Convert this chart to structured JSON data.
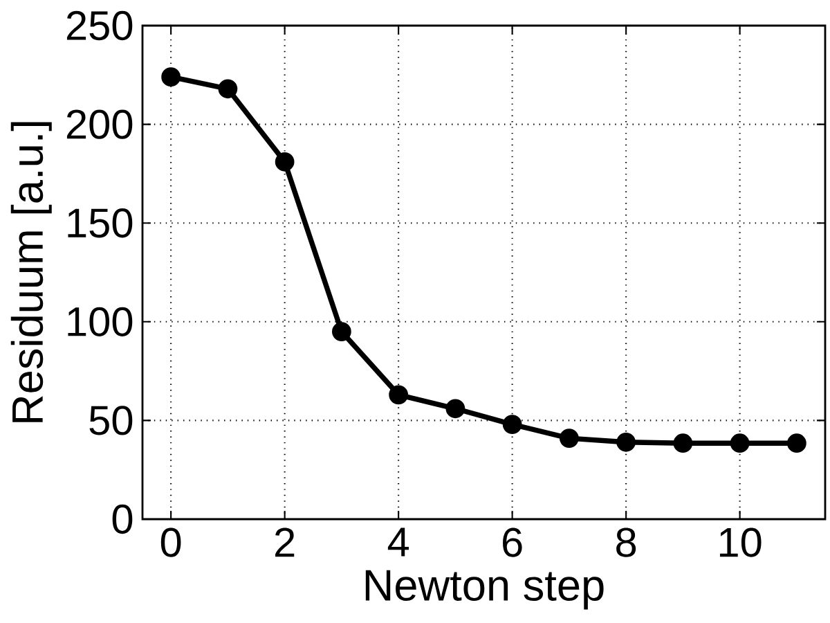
{
  "chart_data": {
    "type": "line",
    "xlabel": "Newton step",
    "ylabel": "Residuum [a.u.]",
    "x": [
      0,
      1,
      2,
      3,
      4,
      5,
      6,
      7,
      8,
      9,
      10,
      11
    ],
    "values": [
      224,
      218,
      181,
      95,
      63,
      56,
      48,
      41,
      39,
      38.5,
      38.5,
      38.5
    ],
    "color": "#000000",
    "xlim": [
      -0.5,
      11.5
    ],
    "ylim": [
      0,
      250
    ],
    "xticks": [
      0,
      2,
      4,
      6,
      8,
      10
    ],
    "yticks": [
      0,
      50,
      100,
      150,
      200,
      250
    ],
    "grid": true,
    "marker": "circle",
    "line_style": "solid"
  }
}
